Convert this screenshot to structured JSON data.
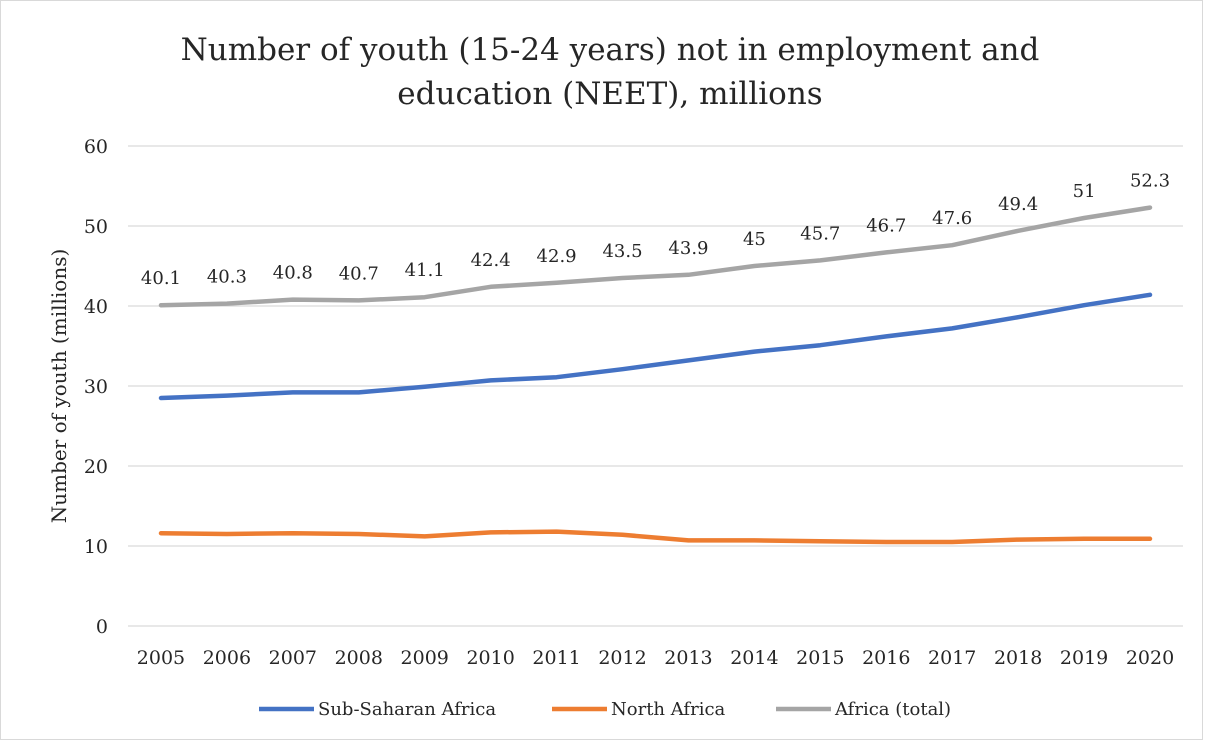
{
  "chart_data": {
    "type": "line",
    "title_lines": [
      "Number of youth (15-24 years) not in employment and",
      "education (NEET), millions"
    ],
    "ylabel": "Number of youth (millions)",
    "xlabel": "",
    "ylim": [
      0,
      60
    ],
    "yticks": [
      0,
      10,
      20,
      30,
      40,
      50,
      60
    ],
    "grid": "horizontal",
    "legend_position": "bottom",
    "categories": [
      "2005",
      "2006",
      "2007",
      "2008",
      "2009",
      "2010",
      "2011",
      "2012",
      "2013",
      "2014",
      "2015",
      "2016",
      "2017",
      "2018",
      "2019",
      "2020"
    ],
    "series": [
      {
        "name": "Sub-Saharan Africa",
        "color": "#4472c4",
        "values": [
          28.5,
          28.8,
          29.2,
          29.2,
          29.9,
          30.7,
          31.1,
          32.1,
          33.2,
          34.3,
          35.1,
          36.2,
          37.2,
          38.6,
          40.1,
          41.4
        ],
        "show_labels": false
      },
      {
        "name": "North Africa",
        "color": "#ed7d31",
        "values": [
          11.6,
          11.5,
          11.6,
          11.5,
          11.2,
          11.7,
          11.8,
          11.4,
          10.7,
          10.7,
          10.6,
          10.5,
          10.5,
          10.8,
          10.9,
          10.9
        ],
        "show_labels": false
      },
      {
        "name": "Africa (total)",
        "color": "#a5a5a5",
        "values": [
          40.1,
          40.3,
          40.8,
          40.7,
          41.1,
          42.4,
          42.9,
          43.5,
          43.9,
          45,
          45.7,
          46.7,
          47.6,
          49.4,
          51,
          52.3
        ],
        "data_labels": [
          "40.1",
          "40.3",
          "40.8",
          "40.7",
          "41.1",
          "42.4",
          "42.9",
          "43.5",
          "43.9",
          "45",
          "45.7",
          "46.7",
          "47.6",
          "49.4",
          "51",
          "52.3"
        ],
        "show_labels": true
      }
    ]
  }
}
